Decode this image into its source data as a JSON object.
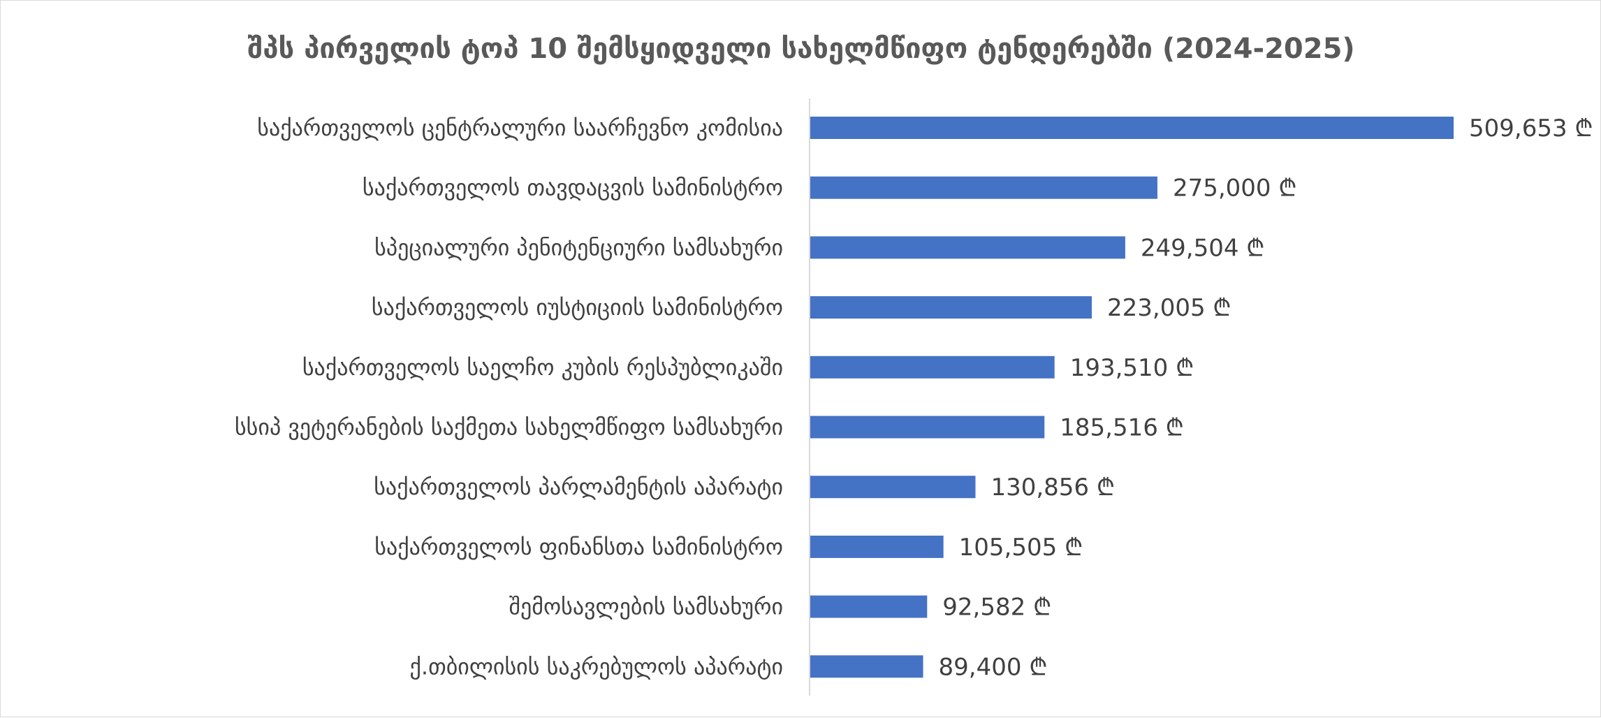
{
  "chart_data": {
    "type": "bar",
    "orientation": "horizontal",
    "title": "შპს პირველის ტოპ 10 შემსყიდველი სახელმწიფო ტენდერებში (2024-2025)",
    "categories": [
      "საქართველოს ცენტრალური საარჩევნო კომისია",
      "საქართველოს თავდაცვის სამინისტრო",
      "სპეციალური პენიტენციური სამსახური",
      "საქართველოს იუსტიციის სამინისტრო",
      "საქართველოს საელჩო კუბის რესპუბლიკაში",
      "სსიპ ვეტერანების საქმეთა სახელმწიფო სამსახური",
      "საქართველოს პარლამენტის აპარატი",
      "საქართველოს ფინანსთა სამინისტრო",
      "შემოსავლების სამსახური",
      "ქ.თბილისის საკრებულოს აპარატი"
    ],
    "values": [
      509653,
      275000,
      249504,
      223005,
      193510,
      185516,
      130856,
      105505,
      92582,
      89400
    ],
    "data_labels": [
      "509,653 ₾",
      "275,000 ₾",
      "249,504 ₾",
      "223,005 ₾",
      "193,510 ₾",
      "185,516 ₾",
      "130,856 ₾",
      "105,505 ₾",
      "92,582 ₾",
      "89,400 ₾"
    ],
    "xlim": [
      0,
      509653
    ],
    "xlabel": "",
    "ylabel": "",
    "grid": false,
    "legend": "none",
    "bar_color": "#4472c4"
  }
}
